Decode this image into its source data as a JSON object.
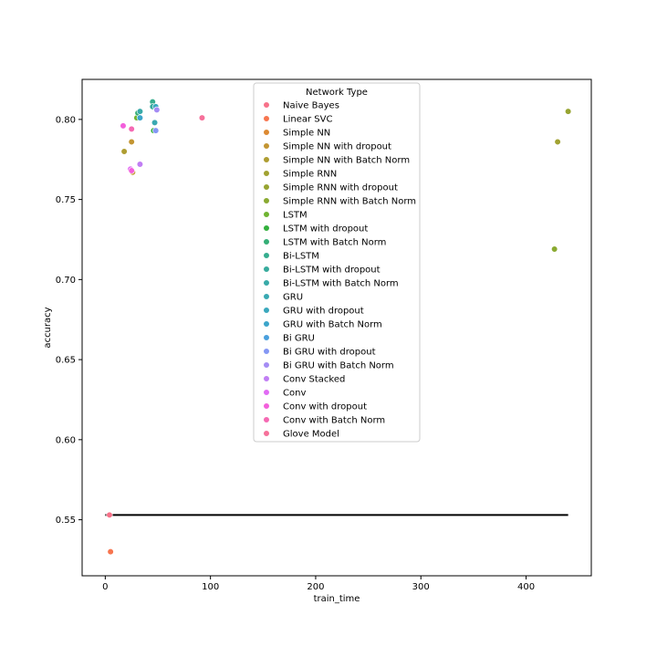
{
  "chart_data": {
    "type": "scatter",
    "xlabel": "train_time",
    "ylabel": "accuracy",
    "xlim": [
      -22,
      462
    ],
    "ylim": [
      0.515,
      0.825
    ],
    "x_ticks": [
      0,
      100,
      200,
      300,
      400
    ],
    "y_ticks": [
      0.55,
      0.6,
      0.65,
      0.7,
      0.75,
      0.8
    ],
    "y_tick_labels": [
      "0.55",
      "0.60",
      "0.65",
      "0.70",
      "0.75",
      "0.80"
    ],
    "grid": false,
    "legend": {
      "title": "Network Type",
      "placement": "upper-center"
    },
    "hline": {
      "y": 0.553,
      "x_start": 0,
      "x_end": 440,
      "color": "#000000"
    },
    "series": [
      {
        "name": "Naive Bayes",
        "color": "#f77189",
        "points": [
          [
            4,
            0.553
          ]
        ]
      },
      {
        "name": "Linear SVC",
        "color": "#f7754f",
        "points": [
          [
            5,
            0.53
          ]
        ]
      },
      {
        "name": "Simple NN",
        "color": "#dc8932",
        "points": []
      },
      {
        "name": "Simple NN with dropout",
        "color": "#c39532",
        "points": [
          [
            25,
            0.786
          ],
          [
            26,
            0.767
          ]
        ]
      },
      {
        "name": "Simple NN with Batch Norm",
        "color": "#ae9d31",
        "points": [
          [
            18,
            0.78
          ]
        ]
      },
      {
        "name": "Simple RNN",
        "color": "#a1a231",
        "points": [
          [
            430,
            0.786
          ]
        ]
      },
      {
        "name": "Simple RNN with dropout",
        "color": "#97a431",
        "points": [
          [
            440,
            0.805
          ]
        ]
      },
      {
        "name": "Simple RNN with Batch Norm",
        "color": "#8aaa31",
        "points": [
          [
            427,
            0.719
          ]
        ]
      },
      {
        "name": "LSTM",
        "color": "#6fb431",
        "points": [
          [
            30,
            0.801
          ]
        ]
      },
      {
        "name": "LSTM with dropout",
        "color": "#33b03d",
        "points": [
          [
            46,
            0.793
          ]
        ]
      },
      {
        "name": "LSTM with Batch Norm",
        "color": "#34ae76",
        "points": [
          [
            31,
            0.804
          ]
        ]
      },
      {
        "name": "Bi-LSTM",
        "color": "#36ad8e",
        "points": [
          [
            45,
            0.811
          ]
        ]
      },
      {
        "name": "Bi-LSTM with dropout",
        "color": "#37ab9d",
        "points": [
          [
            45,
            0.808
          ]
        ]
      },
      {
        "name": "Bi-LSTM with Batch Norm",
        "color": "#38aaa8",
        "points": [
          [
            33,
            0.805
          ]
        ]
      },
      {
        "name": "GRU",
        "color": "#39a9b2",
        "points": [
          [
            47,
            0.798
          ]
        ]
      },
      {
        "name": "GRU with dropout",
        "color": "#3aa8bd",
        "points": [
          [
            48,
            0.808
          ]
        ]
      },
      {
        "name": "GRU with Batch Norm",
        "color": "#3ca5ca",
        "points": [
          [
            33,
            0.801
          ]
        ]
      },
      {
        "name": "Bi GRU",
        "color": "#4aa0dd",
        "points": []
      },
      {
        "name": "Bi GRU with dropout",
        "color": "#8497f4",
        "points": [
          [
            48,
            0.793
          ]
        ]
      },
      {
        "name": "Bi GRU with Batch Norm",
        "color": "#a48cf4",
        "points": [
          [
            49,
            0.806
          ]
        ]
      },
      {
        "name": "Conv Stacked",
        "color": "#c17ef4",
        "points": [
          [
            33,
            0.772
          ]
        ]
      },
      {
        "name": "Conv",
        "color": "#e16bf4",
        "points": [
          [
            24,
            0.769
          ]
        ]
      },
      {
        "name": "Conv with dropout",
        "color": "#f35fdb",
        "points": [
          [
            17,
            0.796
          ],
          [
            25,
            0.768
          ]
        ]
      },
      {
        "name": "Conv with Batch Norm",
        "color": "#f569b3",
        "points": [
          [
            25,
            0.794
          ]
        ]
      },
      {
        "name": "Glove Model",
        "color": "#f6709a",
        "points": [
          [
            92,
            0.801
          ]
        ]
      }
    ]
  }
}
